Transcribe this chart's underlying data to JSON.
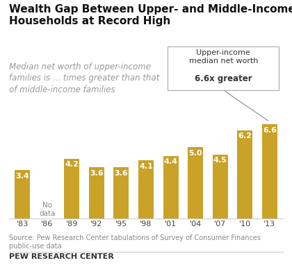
{
  "title": "Wealth Gap Between Upper- and Middle-Income\nHouseholds at Record High",
  "subtitle": "Median net worth of upper-income\nfamilies is ... times greater than that\nof middle-income families",
  "categories": [
    "'83",
    "'86",
    "'89",
    "'92",
    "'95",
    "'98",
    "'01",
    "'04",
    "'07",
    "'10",
    "'13"
  ],
  "values": [
    3.4,
    null,
    4.2,
    3.6,
    3.6,
    4.1,
    4.4,
    5.0,
    4.5,
    6.2,
    6.6
  ],
  "bar_color": "#C9A227",
  "no_data_label": "No\ndata",
  "ann_line1": "Upper-income",
  "ann_line2": "median net worth",
  "ann_line3": "6.6x greater",
  "source_text": "Source: Pew Research Center tabulations of Survey of Consumer Finances\npublic-use data",
  "footer_text": "PEW RESEARCH CENTER",
  "ylim": [
    0,
    7.8
  ],
  "background_color": "#ffffff",
  "label_color_inside": "#ffffff",
  "no_data_color": "#888888",
  "spine_color": "#cccccc",
  "title_fontsize": 11,
  "subtitle_fontsize": 8.5,
  "bar_label_fontsize": 8,
  "tick_fontsize": 8,
  "source_fontsize": 7,
  "footer_fontsize": 8
}
